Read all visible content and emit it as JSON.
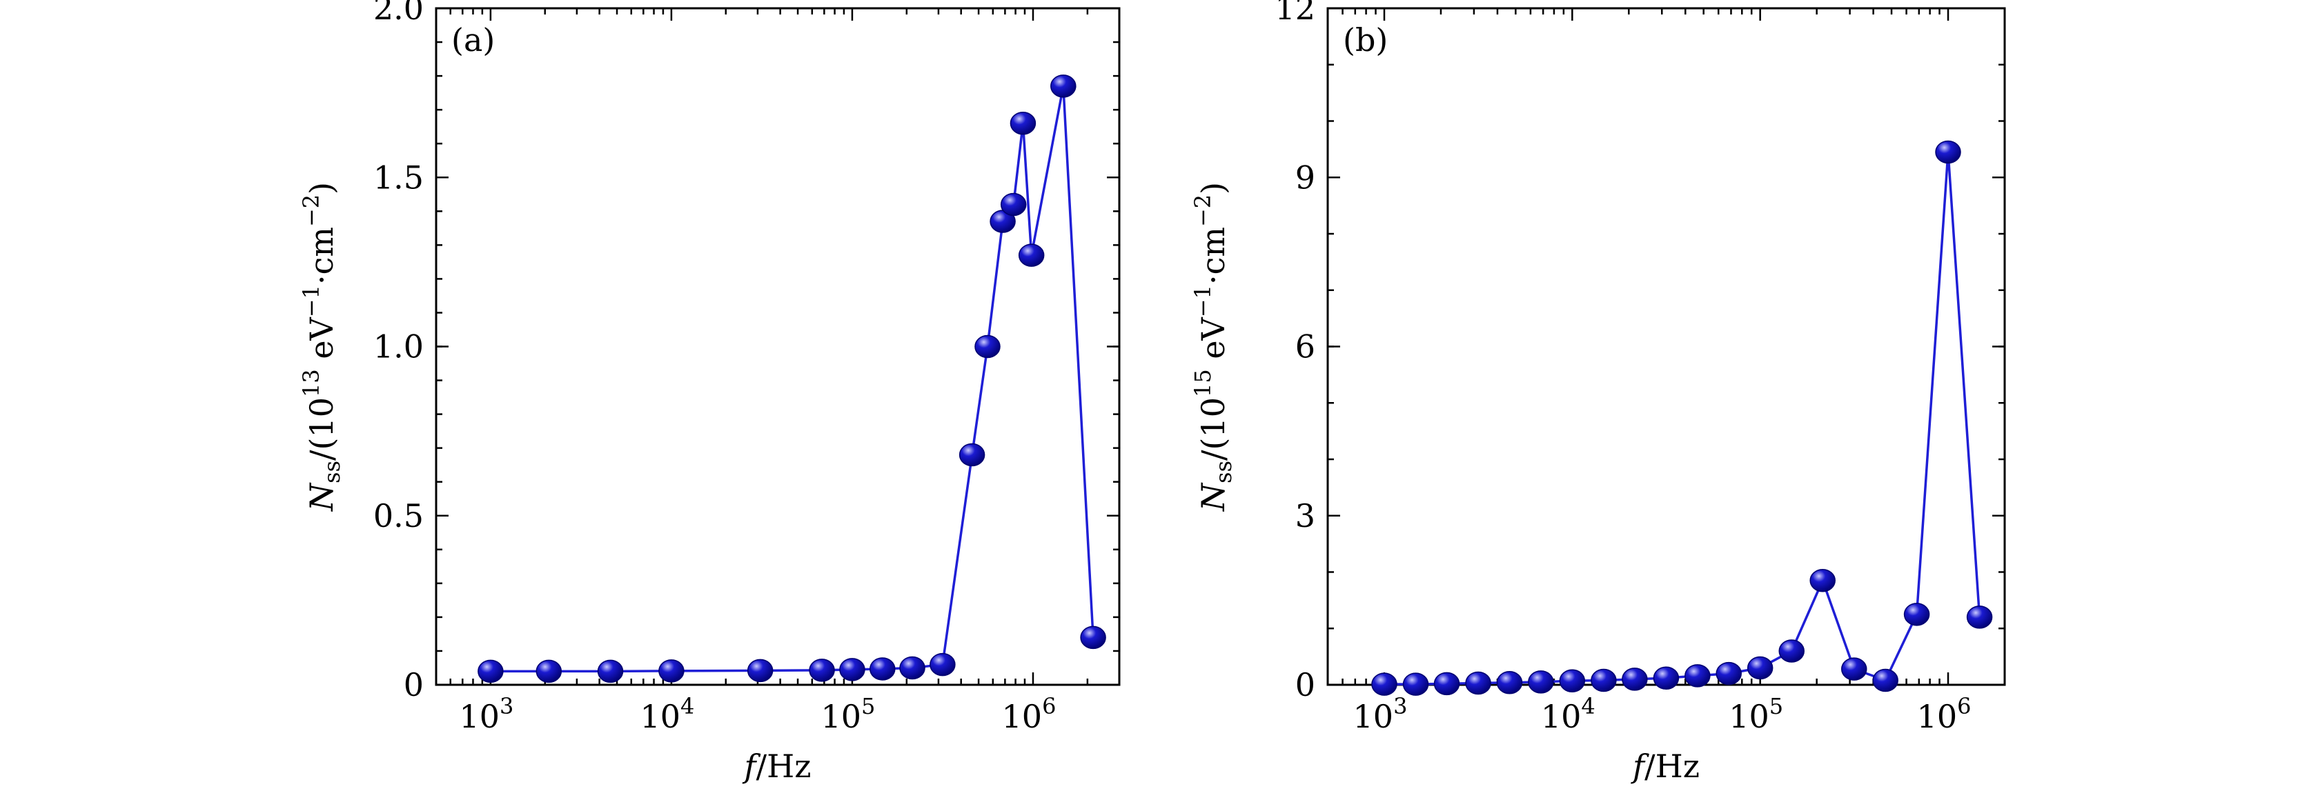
{
  "colors": {
    "line": "#1f1fd6",
    "marker_fill": "#1a1ad0",
    "marker_highlight": "#c9c9ff",
    "marker_dark": "#000070"
  },
  "chart_data": [
    {
      "type": "line",
      "panel_label": "(a)",
      "xlabel": {
        "var": "f",
        "unit": "/Hz"
      },
      "ylabel": {
        "var": "N",
        "sub": "ss",
        "pre": "/(10",
        "exp": "13",
        "mid": " eV",
        "exp2": "−1",
        "mid2": "·cm",
        "exp3": "−2",
        "post": ")"
      },
      "xscale": "log",
      "xlim": [
        500,
        3000000
      ],
      "ylim": [
        0,
        2.0
      ],
      "xticks": [
        {
          "value": 1000,
          "base": "10",
          "exp": "3"
        },
        {
          "value": 10000,
          "base": "10",
          "exp": "4"
        },
        {
          "value": 100000,
          "base": "10",
          "exp": "5"
        },
        {
          "value": 1000000,
          "base": "10",
          "exp": "6"
        }
      ],
      "yticks": [
        {
          "value": 0,
          "label": "0"
        },
        {
          "value": 0.5,
          "label": "0.5"
        },
        {
          "value": 1.0,
          "label": "1.0"
        },
        {
          "value": 1.5,
          "label": "1.5"
        },
        {
          "value": 2.0,
          "label": "2.0"
        }
      ],
      "yminor_step": 0.1,
      "series": [
        {
          "x": [
            1000,
            2100,
            4600,
            10000,
            31000,
            68000,
            100000,
            147000,
            215000,
            316000,
            460000,
            560000,
            680000,
            780000,
            880000,
            980000,
            1470000,
            2150000
          ],
          "y": [
            0.04,
            0.04,
            0.04,
            0.041,
            0.042,
            0.043,
            0.045,
            0.047,
            0.05,
            0.06,
            0.68,
            1.0,
            1.37,
            1.42,
            1.66,
            1.27,
            1.77,
            0.14
          ]
        }
      ]
    },
    {
      "type": "line",
      "panel_label": "(b)",
      "xlabel": {
        "var": "f",
        "unit": "/Hz"
      },
      "ylabel": {
        "var": "N",
        "sub": "ss",
        "pre": "/(10",
        "exp": "15",
        "mid": " eV",
        "exp2": "−1",
        "mid2": "·cm",
        "exp3": "−2",
        "post": ")"
      },
      "xscale": "log",
      "xlim": [
        500,
        2000000
      ],
      "ylim": [
        0,
        12
      ],
      "xticks": [
        {
          "value": 1000,
          "base": "10",
          "exp": "3"
        },
        {
          "value": 10000,
          "base": "10",
          "exp": "4"
        },
        {
          "value": 100000,
          "base": "10",
          "exp": "5"
        },
        {
          "value": 1000000,
          "base": "10",
          "exp": "6"
        }
      ],
      "yticks": [
        {
          "value": 0,
          "label": "0"
        },
        {
          "value": 3,
          "label": "3"
        },
        {
          "value": 6,
          "label": "6"
        },
        {
          "value": 9,
          "label": "9"
        },
        {
          "value": 12,
          "label": "12"
        }
      ],
      "yminor_step": 1,
      "series": [
        {
          "x": [
            1000,
            1470,
            2150,
            3160,
            4640,
            6810,
            10000,
            14700,
            21500,
            31600,
            46400,
            68100,
            100000,
            147000,
            215000,
            316000,
            464000,
            681000,
            1000000,
            1470000
          ],
          "y": [
            0.01,
            0.01,
            0.02,
            0.03,
            0.04,
            0.05,
            0.07,
            0.08,
            0.1,
            0.12,
            0.16,
            0.2,
            0.3,
            0.6,
            1.85,
            0.28,
            0.08,
            1.25,
            9.45,
            1.2
          ]
        }
      ]
    }
  ]
}
